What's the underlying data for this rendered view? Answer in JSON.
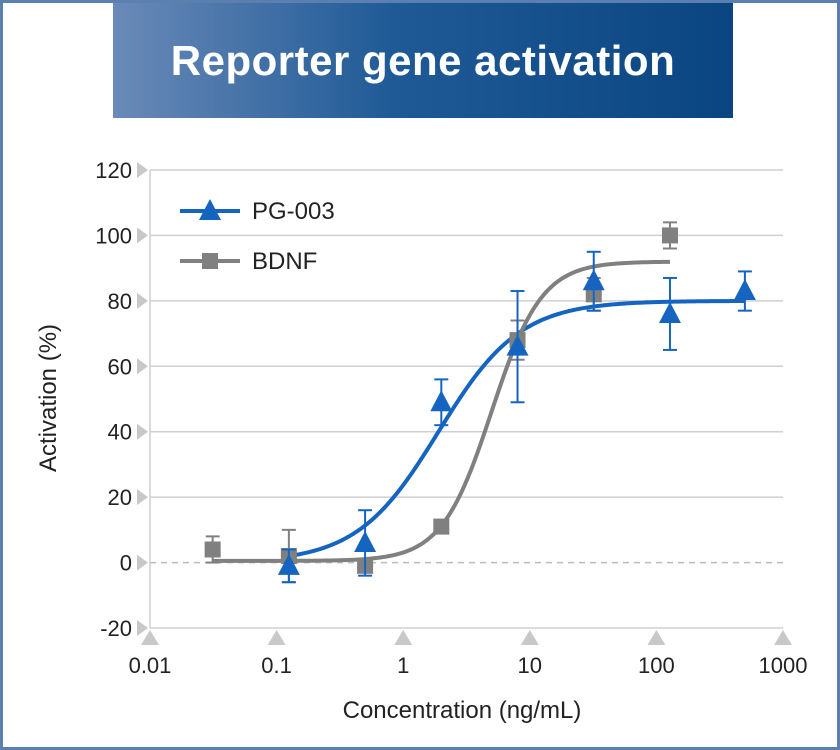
{
  "chart_data": {
    "type": "scatter",
    "title": "Reporter gene activation",
    "xlabel": "Concentration (ng/mL)",
    "ylabel": "Activation (%)",
    "xscale": "log",
    "xlim": [
      0.01,
      1000
    ],
    "ylim": [
      -20,
      120
    ],
    "xticks": [
      0.01,
      0.1,
      1,
      10,
      100,
      1000
    ],
    "xtick_labels": [
      "0.01",
      "0.1",
      "1",
      "10",
      "100",
      "1000"
    ],
    "yticks": [
      -20,
      0,
      20,
      40,
      60,
      80,
      100,
      120
    ],
    "ytick_labels": [
      "-20",
      "0",
      "20",
      "40",
      "60",
      "80",
      "100",
      "120"
    ],
    "grid": true,
    "legend_position": "top-left",
    "series": [
      {
        "name": "PG-003",
        "marker": "triangle",
        "color": "#1565c0",
        "x": [
          0.125,
          0.5,
          2,
          8,
          32,
          128,
          500
        ],
        "y": [
          -1,
          6,
          49,
          66,
          86,
          76,
          83
        ],
        "error": [
          5,
          10,
          7,
          17,
          9,
          11,
          6
        ],
        "fit": {
          "bottom": 0,
          "top": 80,
          "ec50": 1.9,
          "hill": 1.35,
          "x_range": [
            0.125,
            500
          ]
        }
      },
      {
        "name": "BDNF",
        "marker": "square",
        "color": "#808080",
        "x": [
          0.03125,
          0.125,
          0.5,
          2,
          8,
          32,
          128
        ],
        "y": [
          4,
          2,
          -1,
          11,
          68,
          82,
          100
        ],
        "error": [
          4,
          8,
          2,
          0,
          6,
          5,
          4
        ],
        "fit": {
          "bottom": 0.5,
          "top": 92,
          "ec50": 5.0,
          "hill": 2.2,
          "x_range": [
            0.03125,
            128
          ]
        }
      }
    ]
  }
}
